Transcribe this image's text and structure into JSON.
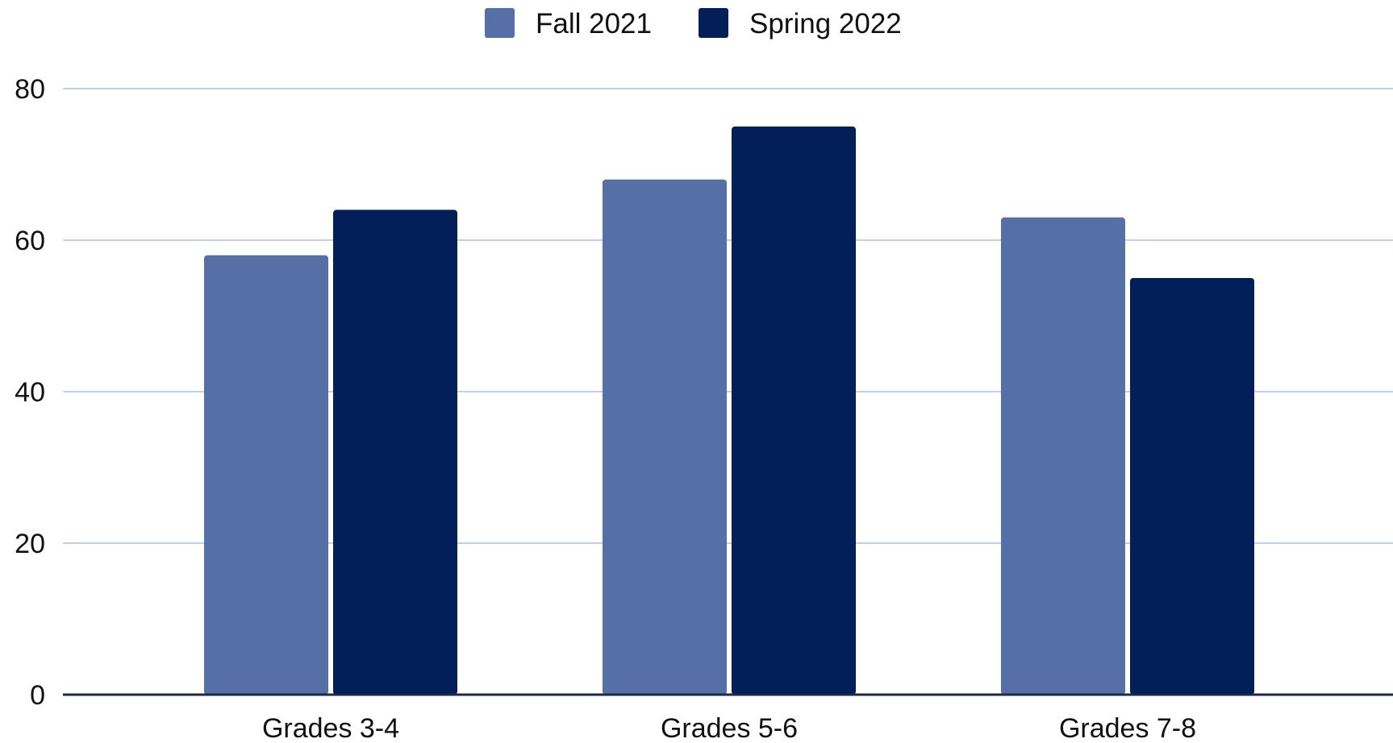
{
  "chart_data": {
    "type": "bar",
    "categories": [
      "Grades 3-4",
      "Grades 5-6",
      "Grades 7-8"
    ],
    "series": [
      {
        "name": "Fall 2021",
        "color": "#5470a6",
        "values": [
          58,
          68,
          63
        ]
      },
      {
        "name": "Spring 2022",
        "color": "#021f59",
        "values": [
          64,
          75,
          55
        ]
      }
    ],
    "title": "",
    "xlabel": "",
    "ylabel": "",
    "ylim": [
      0,
      80
    ],
    "yticks": [
      0,
      20,
      40,
      60,
      80
    ],
    "grid": true,
    "legend_position": "top-center",
    "colors": {
      "grid": "#c3cfe2",
      "axis": "#1b2a4a",
      "text": "#111111"
    }
  }
}
